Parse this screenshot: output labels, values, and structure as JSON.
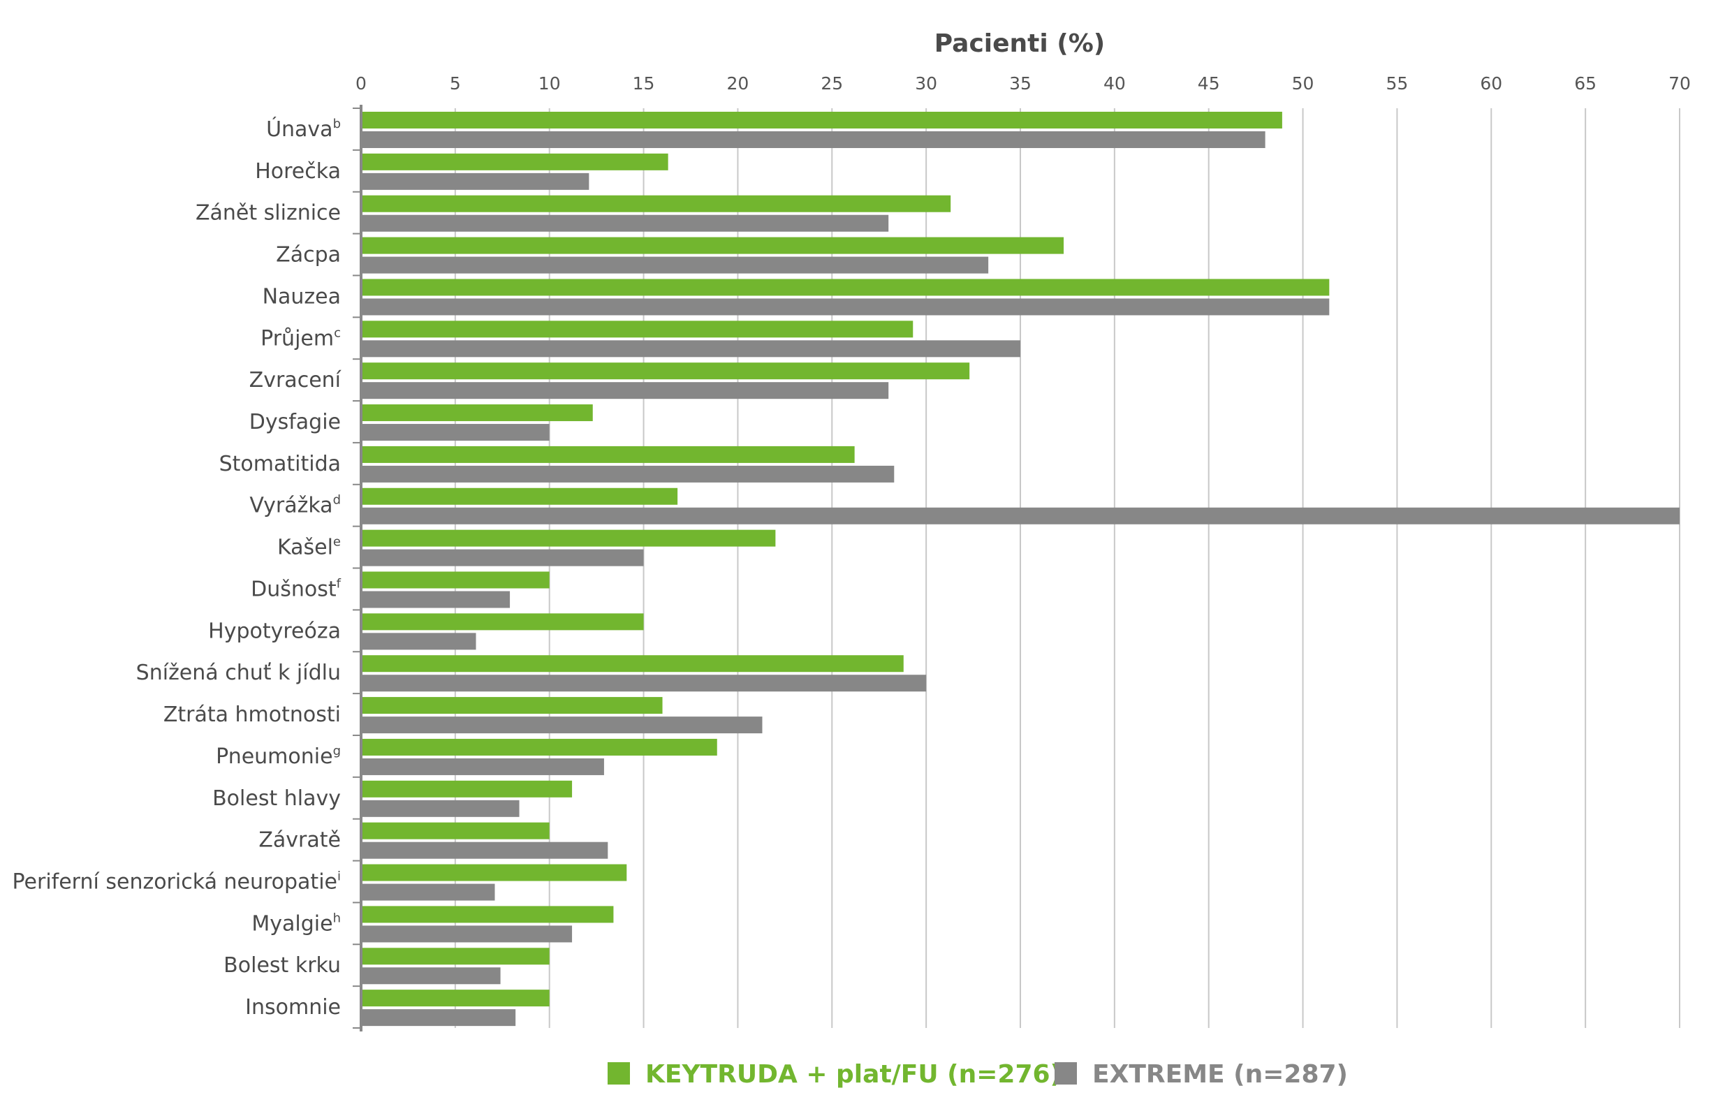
{
  "chart_data": {
    "type": "bar",
    "orientation": "horizontal",
    "title": "Pacienti (%)",
    "xlabel": "Pacienti (%)",
    "ylabel": "",
    "xlim": [
      0,
      70
    ],
    "xticks": [
      0,
      5,
      10,
      15,
      20,
      25,
      30,
      35,
      40,
      45,
      50,
      55,
      60,
      65,
      70
    ],
    "grid": true,
    "legend_position": "bottom",
    "categories": [
      {
        "label": "Únava",
        "sup": "b"
      },
      {
        "label": "Horečka",
        "sup": ""
      },
      {
        "label": "Zánět sliznice",
        "sup": ""
      },
      {
        "label": "Zácpa",
        "sup": ""
      },
      {
        "label": "Nauzea",
        "sup": ""
      },
      {
        "label": "Průjem",
        "sup": "c"
      },
      {
        "label": "Zvracení",
        "sup": ""
      },
      {
        "label": "Dysfagie",
        "sup": ""
      },
      {
        "label": "Stomatitida",
        "sup": ""
      },
      {
        "label": "Vyrážka",
        "sup": "d"
      },
      {
        "label": "Kašel",
        "sup": "e"
      },
      {
        "label": "Dušnost",
        "sup": "f"
      },
      {
        "label": "Hypotyreóza",
        "sup": ""
      },
      {
        "label": "Snížená chuť k jídlu",
        "sup": ""
      },
      {
        "label": "Ztráta hmotnosti",
        "sup": ""
      },
      {
        "label": "Pneumonie",
        "sup": "g"
      },
      {
        "label": "Bolest hlavy",
        "sup": ""
      },
      {
        "label": "Závratě",
        "sup": ""
      },
      {
        "label": "Periferní senzorická neuropatie",
        "sup": "i"
      },
      {
        "label": "Myalgie",
        "sup": "h"
      },
      {
        "label": "Bolest krku",
        "sup": ""
      },
      {
        "label": "Insomnie",
        "sup": ""
      }
    ],
    "series": [
      {
        "name": "KEYTRUDA + plat/FU (n=276)",
        "color": "#72b62f",
        "values": [
          48.9,
          16.3,
          31.3,
          37.3,
          51.4,
          29.3,
          32.3,
          12.3,
          26.2,
          16.8,
          22.0,
          10.0,
          15.0,
          28.8,
          16.0,
          18.9,
          11.2,
          10.0,
          14.1,
          13.4,
          10.0,
          10.0
        ]
      },
      {
        "name": "EXTREME (n=287)",
        "color": "#878787",
        "values": [
          48.0,
          12.1,
          28.0,
          33.3,
          51.4,
          35.0,
          28.0,
          10.0,
          28.3,
          70.0,
          15.0,
          7.9,
          6.1,
          30.0,
          21.3,
          12.9,
          8.4,
          13.1,
          7.1,
          11.2,
          7.4,
          8.2
        ]
      }
    ]
  }
}
